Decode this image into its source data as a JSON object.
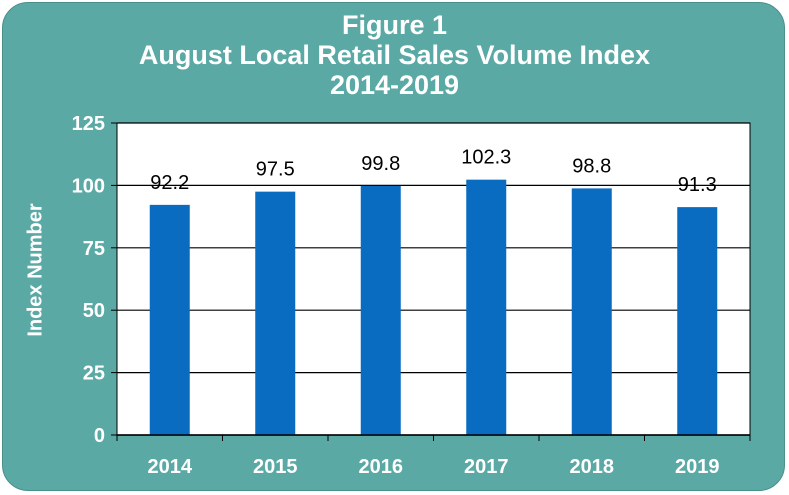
{
  "title_lines": [
    "Figure 1",
    "August Local Retail Sales Volume Index",
    "2014-2019"
  ],
  "colors": {
    "background": "#5aa9a5",
    "bar": "#0a6cc1",
    "plot": "#ffffff",
    "text": "#ffffff"
  },
  "chart_data": {
    "type": "bar",
    "title": "Figure 1 August Local Retail Sales Volume Index 2014-2019",
    "xlabel": "",
    "ylabel": "Index Number",
    "categories": [
      "2014",
      "2015",
      "2016",
      "2017",
      "2018",
      "2019"
    ],
    "values": [
      92.2,
      97.5,
      99.8,
      102.3,
      98.8,
      91.3
    ],
    "data_labels": [
      "92.2",
      "97.5",
      "99.8",
      "102.3",
      "98.8",
      "91.3"
    ],
    "ylim": [
      0,
      125
    ],
    "yticks": [
      0,
      25,
      50,
      75,
      100,
      125
    ],
    "grid": true,
    "legend": "none"
  }
}
